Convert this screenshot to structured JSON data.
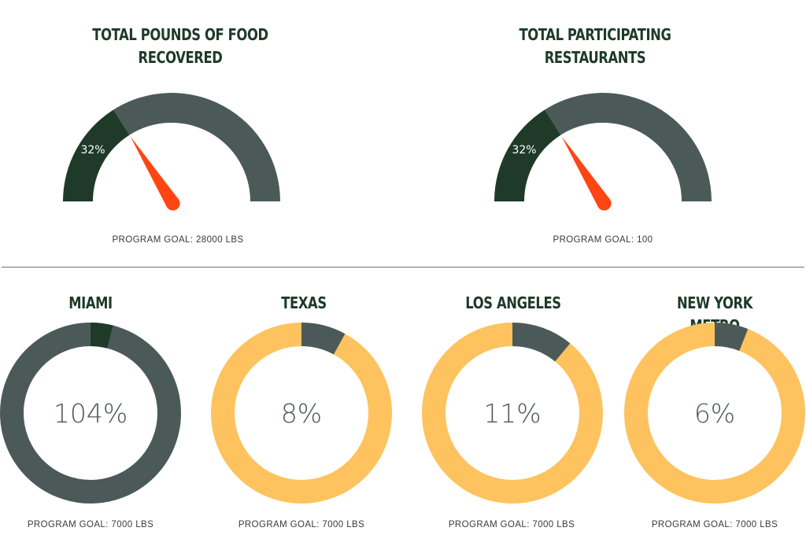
{
  "gauges": [
    {
      "title_line1": "TOTAL POUNDS OF FOOD",
      "title_line2": "RECOVERED",
      "percent": 32,
      "value_label": "32%",
      "goal_label": "PROGRAM GOAL: 28000 LBS"
    },
    {
      "title_line1": "TOTAL PARTICIPATING",
      "title_line2": "RESTAURANTS",
      "percent": 32,
      "value_label": "32%",
      "goal_label": "PROGRAM GOAL: 100"
    }
  ],
  "donuts": [
    {
      "title": "MIAMI",
      "percent": 104,
      "value_label": "104%",
      "goal_label": "PROGRAM GOAL: 7000 LBS",
      "ring_color": "#4b5a59",
      "segment_color": "#1f3a28"
    },
    {
      "title": "TEXAS",
      "percent": 8,
      "value_label": "8%",
      "goal_label": "PROGRAM GOAL: 7000 LBS",
      "ring_color": "#fec35e",
      "segment_color": "#4b5a59"
    },
    {
      "title": "LOS ANGELES",
      "percent": 11,
      "value_label": "11%",
      "goal_label": "PROGRAM GOAL: 7000 LBS",
      "ring_color": "#fec35e",
      "segment_color": "#4b5a59"
    },
    {
      "title": "NEW YORK METRO",
      "percent": 6,
      "value_label": "6%",
      "goal_label": "PROGRAM GOAL: 7000 LBS",
      "ring_color": "#fec35e",
      "segment_color": "#4b5a59"
    }
  ],
  "colors": {
    "gauge_filled": "#1f3a28",
    "gauge_track": "#4b5a59",
    "needle": "#ff4513",
    "center_text": "#4b5a59",
    "title_text": "#1e3a28"
  },
  "chart_data": [
    {
      "type": "gauge",
      "title": "TOTAL POUNDS OF FOOD RECOVERED",
      "value": 32,
      "unit": "%",
      "range": [
        0,
        100
      ],
      "goal": "28000 LBS"
    },
    {
      "type": "gauge",
      "title": "TOTAL PARTICIPATING RESTAURANTS",
      "value": 32,
      "unit": "%",
      "range": [
        0,
        100
      ],
      "goal": "100"
    },
    {
      "type": "pie",
      "title": "MIAMI",
      "value": 104,
      "unit": "%",
      "goal": "7000 LBS"
    },
    {
      "type": "pie",
      "title": "TEXAS",
      "value": 8,
      "unit": "%",
      "goal": "7000 LBS"
    },
    {
      "type": "pie",
      "title": "LOS ANGELES",
      "value": 11,
      "unit": "%",
      "goal": "7000 LBS"
    },
    {
      "type": "pie",
      "title": "NEW YORK METRO",
      "value": 6,
      "unit": "%",
      "goal": "7000 LBS"
    }
  ]
}
